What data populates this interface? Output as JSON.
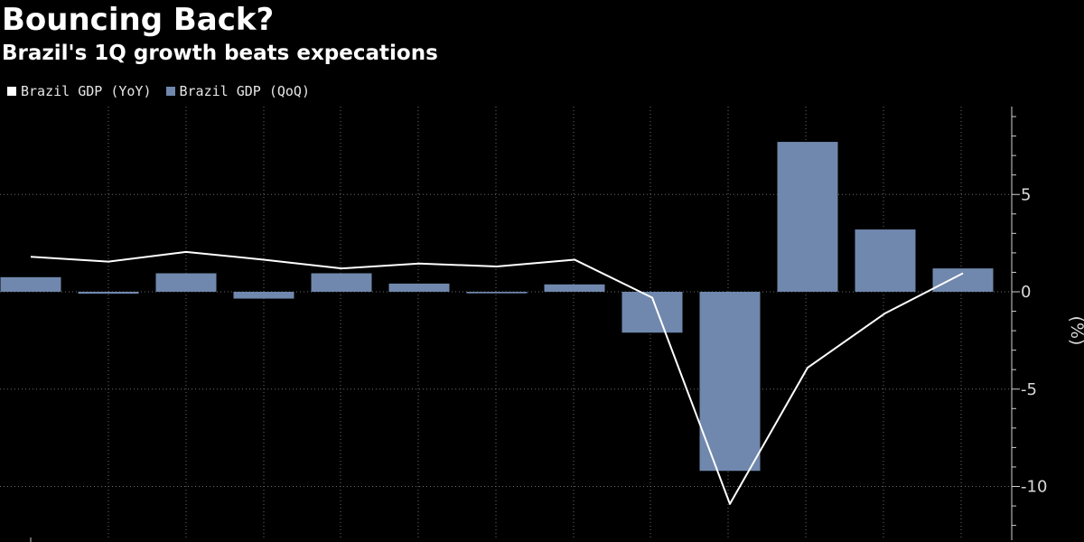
{
  "title": "Bouncing Back?",
  "subtitle": "Brazil's 1Q growth beats expecations",
  "chart_data": {
    "type": "bar",
    "title": "Bouncing Back?",
    "subtitle": "Brazil's 1Q growth beats expecations",
    "ylabel": "(%)",
    "ylim": [
      -12.5,
      9.5
    ],
    "yticks": [
      5,
      0,
      -5,
      -10
    ],
    "y_axis_side": "right",
    "grid": true,
    "legend_position": "top-left",
    "series": [
      {
        "name": "Brazil GDP (YoY)",
        "type": "line",
        "color": "#ffffff",
        "values": [
          1.8,
          1.55,
          2.05,
          1.65,
          1.2,
          1.45,
          1.3,
          1.65,
          -0.3,
          -10.9,
          -3.9,
          -1.1,
          0.95
        ]
      },
      {
        "name": "Brazil GDP (QoQ)",
        "type": "bar",
        "color": "#7088ad",
        "values": [
          0.75,
          -0.1,
          0.95,
          -0.35,
          0.95,
          0.42,
          -0.08,
          0.38,
          -2.1,
          -9.2,
          7.7,
          3.2,
          1.2
        ]
      }
    ]
  }
}
